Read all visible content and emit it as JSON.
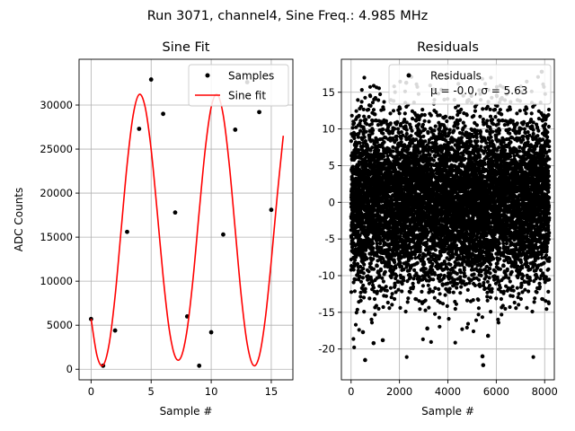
{
  "figure": {
    "suptitle": "Run 3071, channel4, Sine Freq.: 4.985 MHz"
  },
  "chart_data": [
    {
      "type": "line",
      "title": "Sine Fit",
      "xlabel": "Sample #",
      "ylabel": "ADC Counts",
      "xlim": [
        -1.0,
        16.8
      ],
      "ylim": [
        -1200,
        35200
      ],
      "xticks": [
        0,
        5,
        10,
        15
      ],
      "yticks": [
        0,
        5000,
        10000,
        15000,
        20000,
        25000,
        30000
      ],
      "grid": true,
      "legend": "top-right",
      "series": [
        {
          "name": "Samples",
          "style": "points",
          "color": "#000000",
          "x": [
            0,
            1,
            2,
            3,
            4,
            5,
            6,
            7,
            8,
            9,
            10,
            11,
            12,
            13,
            14,
            15
          ],
          "y": [
            5700,
            400,
            4400,
            15600,
            27300,
            32900,
            29000,
            17800,
            6000,
            400,
            4200,
            15300,
            27200,
            32600,
            29200,
            18100
          ]
        },
        {
          "name": "Sine fit",
          "style": "line",
          "color": "#ff0000",
          "x": [
            0.0,
            0.5,
            1.0,
            1.5,
            2.0,
            2.5,
            3.0,
            3.5,
            4.0,
            4.5,
            5.0,
            5.5,
            6.0,
            6.5,
            7.0,
            7.5,
            8.0,
            8.5,
            9.0,
            9.5,
            10.0,
            10.5,
            11.0,
            11.5,
            12.0,
            12.5,
            13.0,
            13.5,
            14.0,
            14.5,
            15.0,
            15.5,
            16.0
          ],
          "y": [
            5748,
            1508,
            452,
            2836,
            8301,
            15783,
            23254,
            28835,
            31198,
            29783,
            24978,
            17958,
            10500,
            4588,
            1428,
            1408,
            4533,
            10429,
            17893,
            24935,
            29769,
            31210,
            28866,
            23300,
            15828,
            8343,
            2867,
            457,
            1486,
            5712,
            12279,
            19756,
            26516
          ]
        }
      ]
    },
    {
      "type": "scatter",
      "title": "Residuals",
      "xlabel": "Sample #",
      "ylabel": "",
      "xlim": [
        -400,
        8400
      ],
      "ylim": [
        -24.2,
        19.5
      ],
      "xticks": [
        0,
        2000,
        4000,
        6000,
        8000
      ],
      "yticks": [
        -20,
        -15,
        -10,
        -5,
        0,
        5,
        10,
        15
      ],
      "grid": true,
      "legend": "top-right",
      "series": [
        {
          "name": "Residuals",
          "style": "points",
          "color": "#000000",
          "n_points": 8192,
          "mean": -0.0,
          "std": 5.63,
          "x_range": [
            0,
            8191
          ],
          "y_range": [
            -22.2,
            17.8
          ],
          "outliers": [
            {
              "x": 580,
              "y": -21.5
            },
            {
              "x": 5430,
              "y": -21.0
            },
            {
              "x": 5460,
              "y": -22.2
            },
            {
              "x": 2280,
              "y": 16.3
            },
            {
              "x": 7880,
              "y": 17.8
            },
            {
              "x": 930,
              "y": -19.2
            },
            {
              "x": 1310,
              "y": -18.8
            },
            {
              "x": 3150,
              "y": -17.2
            },
            {
              "x": 5660,
              "y": -18.2
            },
            {
              "x": 490,
              "y": -17.7
            }
          ]
        }
      ],
      "legend_text": {
        "label": "Residuals",
        "stats": "μ = -0.0, σ = 5.63"
      }
    }
  ]
}
